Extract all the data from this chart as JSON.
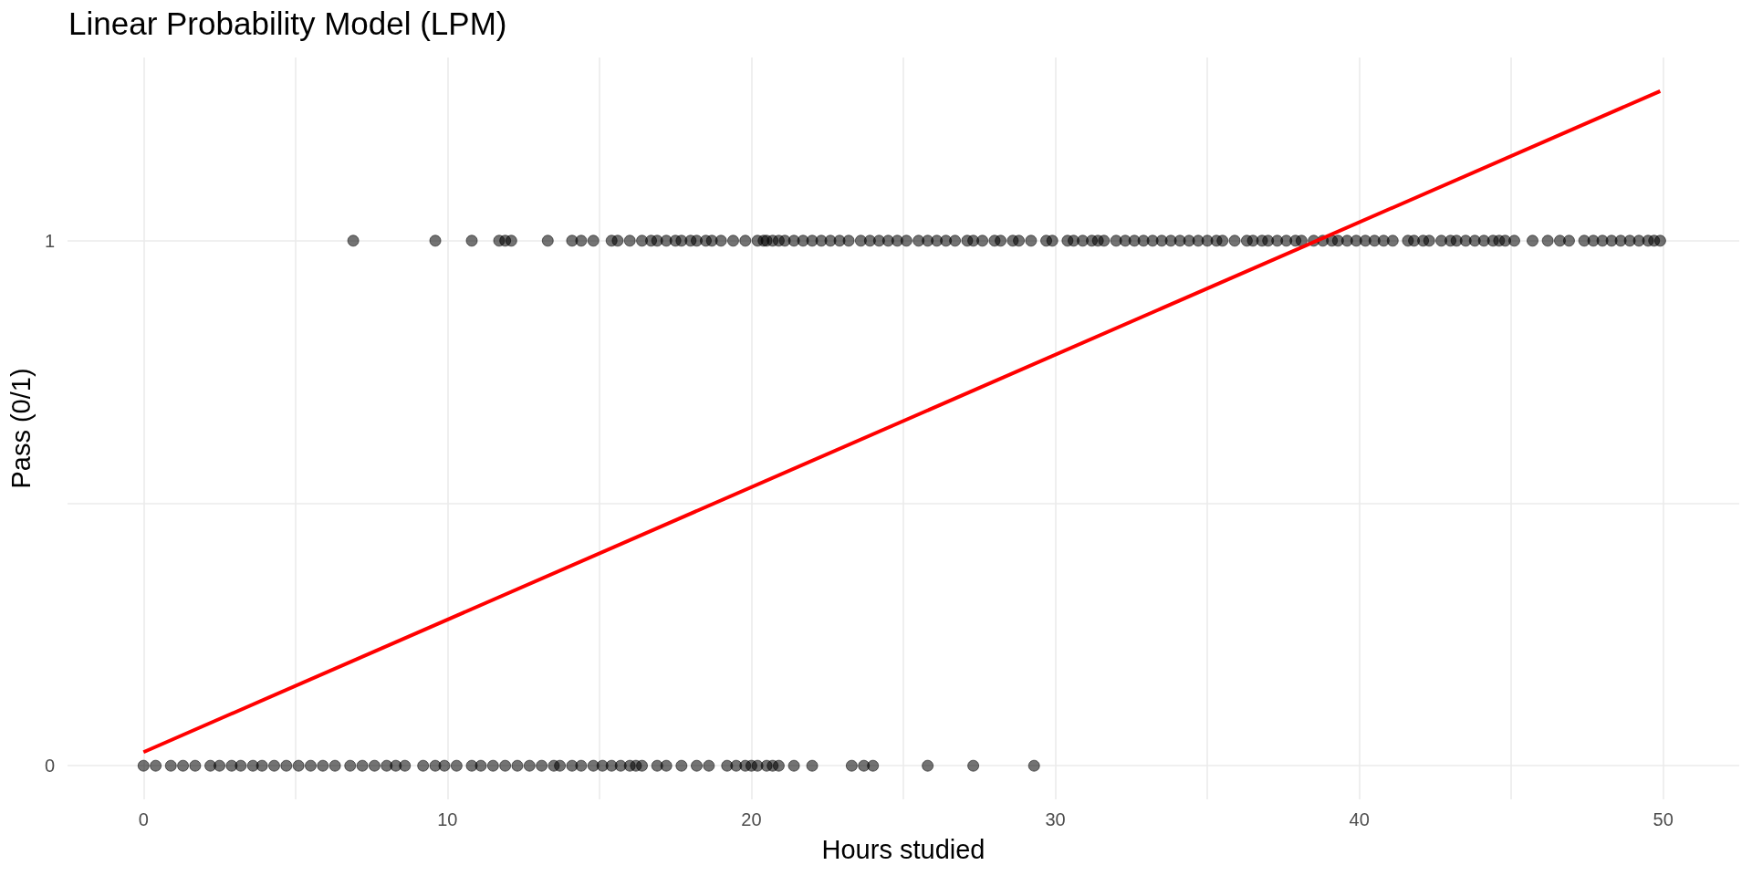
{
  "chart_data": {
    "type": "scatter",
    "title": "Linear Probability Model (LPM)",
    "xlabel": "Hours studied",
    "ylabel": "Pass (0/1)",
    "xlim": [
      -2.5,
      52.5
    ],
    "ylim": [
      -0.064,
      1.349
    ],
    "xticks": [
      0,
      {
        "value": 5,
        "label": null
      },
      10,
      {
        "value": 15,
        "label": null
      },
      20,
      {
        "value": 25,
        "label": null
      },
      30,
      {
        "value": 35,
        "label": null
      },
      40,
      {
        "value": 45,
        "label": null
      },
      50
    ],
    "yticks": [
      0,
      {
        "value": 0.5,
        "label": null
      },
      1
    ],
    "grid": true,
    "marker": "circle",
    "series": [
      {
        "color": "#000000",
        "x": [
          6.9,
          9.6,
          10.8,
          11.7,
          11.9,
          12.1,
          13.3,
          14.1,
          14.4,
          14.8,
          15.4,
          15.6,
          16.0,
          16.4,
          16.7,
          16.9,
          17.2,
          17.5,
          17.7,
          18.0,
          18.2,
          18.5,
          18.7,
          19.0,
          19.4,
          19.8,
          20.2,
          20.4,
          20.5,
          20.7,
          20.9,
          21.1,
          21.4,
          21.7,
          22.0,
          22.3,
          22.6,
          22.9,
          23.2,
          23.6,
          23.9,
          24.2,
          24.5,
          24.8,
          25.1,
          25.5,
          25.8,
          26.1,
          26.4,
          26.7,
          27.1,
          27.3,
          27.6,
          28.0,
          28.2,
          28.6,
          28.8,
          29.2,
          29.7,
          29.9,
          30.4,
          30.6,
          30.9,
          31.2,
          31.4,
          31.6,
          32.0,
          32.3,
          32.6,
          32.9,
          33.2,
          33.5,
          33.8,
          34.1,
          34.4,
          34.7,
          35.0,
          35.3,
          35.5,
          35.9,
          36.3,
          36.5,
          36.8,
          37.0,
          37.3,
          37.6,
          37.9,
          38.1,
          38.5,
          38.8,
          39.1,
          39.3,
          39.6,
          39.9,
          40.2,
          40.5,
          40.8,
          41.1,
          41.6,
          41.8,
          42.1,
          42.3,
          42.7,
          43.0,
          43.2,
          43.5,
          43.8,
          44.1,
          44.4,
          44.6,
          44.8,
          45.1,
          45.7,
          46.2,
          46.6,
          46.9,
          47.4,
          47.7,
          48.0,
          48.3,
          48.6,
          48.9,
          49.2,
          49.5,
          49.7,
          49.9
        ],
        "values": [
          1,
          1,
          1,
          1,
          1,
          1,
          1,
          1,
          1,
          1,
          1,
          1,
          1,
          1,
          1,
          1,
          1,
          1,
          1,
          1,
          1,
          1,
          1,
          1,
          1,
          1,
          1,
          1,
          1,
          1,
          1,
          1,
          1,
          1,
          1,
          1,
          1,
          1,
          1,
          1,
          1,
          1,
          1,
          1,
          1,
          1,
          1,
          1,
          1,
          1,
          1,
          1,
          1,
          1,
          1,
          1,
          1,
          1,
          1,
          1,
          1,
          1,
          1,
          1,
          1,
          1,
          1,
          1,
          1,
          1,
          1,
          1,
          1,
          1,
          1,
          1,
          1,
          1,
          1,
          1,
          1,
          1,
          1,
          1,
          1,
          1,
          1,
          1,
          1,
          1,
          1,
          1,
          1,
          1,
          1,
          1,
          1,
          1,
          1,
          1,
          1,
          1,
          1,
          1,
          1,
          1,
          1,
          1,
          1,
          1,
          1,
          1,
          1,
          1,
          1,
          1,
          1,
          1,
          1,
          1,
          1,
          1,
          1,
          1,
          1,
          1
        ]
      },
      {
        "color": "#000000",
        "x": [
          0.0,
          0.4,
          0.9,
          1.3,
          1.7,
          2.2,
          2.5,
          2.9,
          3.2,
          3.6,
          3.9,
          4.3,
          4.7,
          5.1,
          5.5,
          5.9,
          6.3,
          6.8,
          7.2,
          7.6,
          8.0,
          8.3,
          8.6,
          9.2,
          9.6,
          9.9,
          10.3,
          10.8,
          11.1,
          11.5,
          11.9,
          12.3,
          12.7,
          13.1,
          13.5,
          13.7,
          14.1,
          14.4,
          14.8,
          15.1,
          15.4,
          15.7,
          16.0,
          16.2,
          16.4,
          16.9,
          17.2,
          17.7,
          18.2,
          18.6,
          19.2,
          19.5,
          19.8,
          20.0,
          20.2,
          20.5,
          20.7,
          20.9,
          21.4,
          22.0,
          23.3,
          23.7,
          24.0,
          25.8,
          27.3,
          29.3
        ],
        "values": [
          0,
          0,
          0,
          0,
          0,
          0,
          0,
          0,
          0,
          0,
          0,
          0,
          0,
          0,
          0,
          0,
          0,
          0,
          0,
          0,
          0,
          0,
          0,
          0,
          0,
          0,
          0,
          0,
          0,
          0,
          0,
          0,
          0,
          0,
          0,
          0,
          0,
          0,
          0,
          0,
          0,
          0,
          0,
          0,
          0,
          0,
          0,
          0,
          0,
          0,
          0,
          0,
          0,
          0,
          0,
          0,
          0,
          0,
          0,
          0,
          0,
          0,
          0,
          0,
          0,
          0
        ]
      },
      {
        "type": "line",
        "color": "#ff0000",
        "marker": "none",
        "line_style": "solid",
        "x": [
          0.0,
          49.9
        ],
        "values": [
          0.026,
          1.285
        ]
      }
    ]
  }
}
